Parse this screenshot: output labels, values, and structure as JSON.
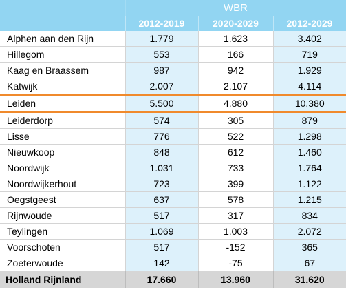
{
  "table": {
    "group_header": "WBR",
    "columns": [
      "2012-2019",
      "2020-2029",
      "2012-2029"
    ],
    "rows": [
      {
        "name": "Alphen aan den Rijn",
        "v1": "1.779",
        "v2": "1.623",
        "v3": "3.402"
      },
      {
        "name": "Hillegom",
        "v1": "553",
        "v2": "166",
        "v3": "719"
      },
      {
        "name": "Kaag en Braassem",
        "v1": "987",
        "v2": "942",
        "v3": "1.929"
      },
      {
        "name": "Katwijk",
        "v1": "2.007",
        "v2": "2.107",
        "v3": "4.114"
      },
      {
        "name": "Leiden",
        "v1": "5.500",
        "v2": "4.880",
        "v3": "10.380"
      },
      {
        "name": "Leiderdorp",
        "v1": "574",
        "v2": "305",
        "v3": "879"
      },
      {
        "name": "Lisse",
        "v1": "776",
        "v2": "522",
        "v3": "1.298"
      },
      {
        "name": "Nieuwkoop",
        "v1": "848",
        "v2": "612",
        "v3": "1.460"
      },
      {
        "name": "Noordwijk",
        "v1": "1.031",
        "v2": "733",
        "v3": "1.764"
      },
      {
        "name": "Noordwijkerhout",
        "v1": "723",
        "v2": "399",
        "v3": "1.122"
      },
      {
        "name": "Oegstgeest",
        "v1": "637",
        "v2": "578",
        "v3": "1.215"
      },
      {
        "name": "Rijnwoude",
        "v1": "517",
        "v2": "317",
        "v3": "834"
      },
      {
        "name": "Teylingen",
        "v1": "1.069",
        "v2": "1.003",
        "v3": "2.072"
      },
      {
        "name": "Voorschoten",
        "v1": "517",
        "v2": "-152",
        "v3": "365"
      },
      {
        "name": "Zoeterwoude",
        "v1": "142",
        "v2": "-75",
        "v3": "67"
      }
    ],
    "total": {
      "name": "Holland Rijnland",
      "v1": "17.660",
      "v2": "13.960",
      "v3": "31.620"
    }
  },
  "colors": {
    "header_bg": "#92d5f2",
    "alt_cell_bg": "#ddf1fb",
    "highlight_border": "#f08a2c",
    "total_bg": "#d6d6d6"
  }
}
